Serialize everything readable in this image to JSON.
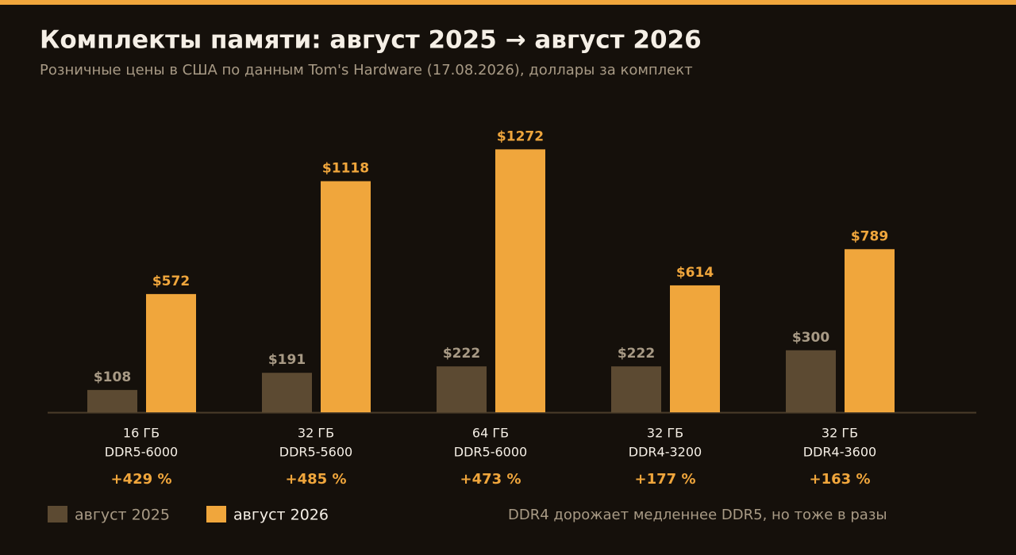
{
  "chart_data": {
    "type": "grouped_bar",
    "title": "Комплекты памяти: август 2025 → август 2026",
    "subtitle": "Розничные цены в США по данным Tom's Hardware (17.08.2026), доллары за комплект",
    "categories": [
      [
        "16 ГБ",
        "DDR5-6000"
      ],
      [
        "32 ГБ",
        "DDR5-5600"
      ],
      [
        "64 ГБ",
        "DDR5-6000"
      ],
      [
        "32 ГБ",
        "DDR4-3200"
      ],
      [
        "32 ГБ",
        "DDR4-3600"
      ]
    ],
    "series": [
      {
        "name": "август 2025",
        "color": "#5c4a32",
        "label_color": "#a89a85",
        "values": [
          108,
          191,
          222,
          222,
          300
        ],
        "value_labels": [
          "$108",
          "$191",
          "$222",
          "$222",
          "$300"
        ]
      },
      {
        "name": "август 2026",
        "color": "#f0a63c",
        "label_color": "#f0a63c",
        "values": [
          572,
          1118,
          1272,
          614,
          789
        ],
        "value_labels": [
          "$572",
          "$1118",
          "$1272",
          "$614",
          "$789"
        ]
      }
    ],
    "changes": [
      "+429 %",
      "+485 %",
      "+473 %",
      "+177 %",
      "+163 %"
    ],
    "note": "DDR4 дорожает медленнее DDR5, но тоже в разы",
    "ylim": [
      0,
      1400
    ],
    "legend": "bottom-left"
  }
}
